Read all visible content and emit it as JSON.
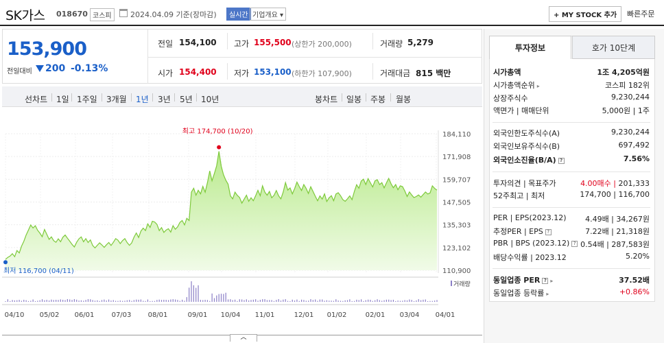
{
  "header": {
    "company": "SK가스",
    "code": "018670",
    "market": "코스피",
    "date": "2024.04.09 기준(장마감)",
    "realtime": "실시간",
    "corp_info": "기업개요",
    "my_stock": "+ MY STOCK 추가",
    "quick_order": "빠른주문"
  },
  "price": {
    "current": "153,900",
    "change_label": "전일대비",
    "change_abs": "200",
    "change_pct": "-0.13%",
    "prev_label": "전일",
    "prev": "154,100",
    "high_label": "고가",
    "high": "155,500",
    "upper_limit": "(상한가 200,000)",
    "volume_label": "거래량",
    "volume": "5,279",
    "open_label": "시가",
    "open": "154,400",
    "low_label": "저가",
    "low": "153,100",
    "lower_limit": "(하한가 107,900)",
    "amount_label": "거래대금",
    "amount": "815",
    "amount_unit": "백만"
  },
  "toolbar": {
    "line_label": "선차트",
    "line_periods": [
      "1일",
      "1주일",
      "3개월",
      "1년",
      "3년",
      "5년",
      "10년"
    ],
    "candle_label": "봉차트",
    "candle_periods": [
      "일봉",
      "주봉",
      "월봉"
    ]
  },
  "chart_data": {
    "type": "area",
    "x_tick_labels": [
      "04/10",
      "05/02",
      "06/01",
      "07/03",
      "08/01",
      "09/01",
      "10/04",
      "11/01",
      "12/01",
      "01/02",
      "02/01",
      "03/04",
      "04/01"
    ],
    "y_tick_labels": [
      "184,110",
      "171,908",
      "159,707",
      "147,505",
      "135,303",
      "123,102",
      "110,900"
    ],
    "ylim": [
      110900,
      184110
    ],
    "high_annotation": "최고 174,700 (10/20)",
    "low_annotation": "최저 116,700 (04/11)",
    "high": 174700,
    "low": 116700,
    "volume_label": "거래량",
    "color": "#7dc93a",
    "values": [
      116700,
      117800,
      118500,
      119800,
      118200,
      121500,
      120200,
      123800,
      126500,
      129800,
      132500,
      135200,
      133600,
      134800,
      132400,
      130800,
      128900,
      132800,
      130200,
      127500,
      128800,
      126800,
      125900,
      127800,
      126200,
      128600,
      129800,
      128100,
      126500,
      124800,
      123400,
      125900,
      127800,
      128800,
      126200,
      127900,
      125800,
      127200,
      124200,
      122900,
      124300,
      125600,
      124500,
      123200,
      124600,
      125800,
      124200,
      125900,
      127900,
      127100,
      125200,
      126800,
      127900,
      125800,
      124300,
      125600,
      128700,
      130900,
      128500,
      131900,
      133500,
      132200,
      135800,
      133900,
      137200,
      136800,
      135500,
      132200,
      133800,
      131200,
      132500,
      133200,
      131400,
      134800,
      132900,
      134200,
      136600,
      137600,
      135200,
      138800,
      137600,
      152800,
      154900,
      151200,
      153800,
      151900,
      155900,
      152800,
      157900,
      164200,
      158900,
      162800,
      166900,
      174700,
      166800,
      162200,
      159200,
      157100,
      150800,
      149200,
      152800,
      151100,
      149900,
      146900,
      149100,
      151200,
      147900,
      149800,
      148200,
      150900,
      153800,
      150900,
      156200,
      152800,
      151200,
      153200,
      149800,
      151100,
      153700,
      150900,
      149200,
      152800,
      157900,
      153900,
      155100,
      151900,
      154800,
      158200,
      155800,
      153700,
      156900,
      154800,
      152100,
      155700,
      153200,
      150600,
      148200,
      150800,
      149100,
      151900,
      147800,
      149800,
      150900,
      148200,
      151800,
      152500,
      150900,
      148800,
      147900,
      149200,
      150800,
      148800,
      153200,
      156800,
      154900,
      158800,
      159800,
      156900,
      160100,
      157800,
      155600,
      158900,
      159500,
      156900,
      157900,
      155100,
      157800,
      160200,
      157300,
      155200,
      156900,
      154100,
      156200,
      155800,
      153400,
      150500,
      152900,
      151300,
      149900,
      150500,
      151300,
      150100,
      151500,
      152900,
      151800,
      152400,
      156200,
      154800,
      153900
    ]
  },
  "right_panel": {
    "tab_active": "투자정보",
    "tab_other": "호가 10단계",
    "rows": [
      {
        "label": "시가총액",
        "value": "1조 4,205억원"
      },
      {
        "label": "시가총액순위",
        "value": "코스피 182위"
      },
      {
        "label": "상장주식수",
        "value": "9,230,244"
      },
      {
        "label": "액면가 | 매매단위",
        "value": "5,000원 | 1주"
      },
      {
        "label": "외국인한도주식수(A)",
        "value": "9,230,244"
      },
      {
        "label": "외국인보유주식수(B)",
        "value": "697,492"
      },
      {
        "label": "외국인소진율(B/A)",
        "value": "7.56%"
      },
      {
        "label": "투자의견 | 목표주가",
        "value_red": "4.00매수",
        "value": "201,333"
      },
      {
        "label": "52주최고 | 최저",
        "value": "174,700 | 116,700"
      },
      {
        "label": "PER | EPS(2023.12)",
        "value": "4.49배 | 34,267원"
      },
      {
        "label": "추정PER | EPS",
        "value": "7.22배 | 21,318원"
      },
      {
        "label": "PBR | BPS (2023.12)",
        "value": "0.54배 | 287,583원"
      },
      {
        "label": "배당수익률 | 2023.12",
        "value": "5.20%"
      },
      {
        "label": "동일업종 PER",
        "value": "37.52배"
      },
      {
        "label": "동일업종 등락률",
        "value": "+0.86%"
      }
    ]
  }
}
